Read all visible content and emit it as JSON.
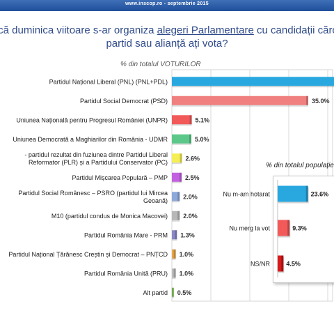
{
  "header": {
    "source_line": "www.inscop.ro - septembrie 2015"
  },
  "question": {
    "part1": "Dacă duminica viitoare s-ar organiza ",
    "underlined": "alegeri Parlamentare",
    "part2": " cu candidații căror",
    "line2": "partid sau alianță ați vota?"
  },
  "chart_data": [
    {
      "type": "bar",
      "orientation": "horizontal",
      "subtitle": "% din totalul VOTURILOR",
      "categories": [
        "Partidul Național Liberal (PNL) (PNL+PDL)",
        "Partidul Social Democrat (PSD)",
        "Uniunea Națională pentru Progresul României (UNPR)",
        "Uniunea Democrată a Maghiarilor din România - UDMR",
        "Partidul - partidul rezultat din fuziunea dintre Partidul Liberal Reformator (PLR) și a Partidului Conservator (PC)",
        "Partidul Mișcarea Populară – PMP",
        "Partidul Social Românesc – PSRO (partidul lui Mircea Geoană)",
        "M10 (partidul condus de Monica Macovei)",
        "Partidul România Mare - PRM",
        "Partidul Național Țărănesc Creștin și Democrat – PNȚCD",
        "Partidul România Unită (PRU)",
        "Alt partid"
      ],
      "category_lines": [
        [
          "Partidul Național Liberal (PNL) (PNL+PDL)"
        ],
        [
          "Partidul Social Democrat (PSD)"
        ],
        [
          "Uniunea Națională pentru Progresul României (UNPR)"
        ],
        [
          "Uniunea Democrată a Maghiarilor din România - UDMR"
        ],
        [
          "- partidul rezultat din fuziunea dintre Partidul Liberal",
          "Reformator (PLR) și a Partidului Conservator (PC)"
        ],
        [
          "Partidul Mișcarea Populară – PMP"
        ],
        [
          "Partidul Social Românesc – PSRO (partidul lui Mircea",
          "Geoană)"
        ],
        [
          "M10 (partidul condus de Monica Macovei)"
        ],
        [
          "Partidul România Mare - PRM"
        ],
        [
          "Partidul Național Țărănesc Creștin și Democrat – PNȚCD"
        ],
        [
          "Partidul România Unită (PRU)"
        ],
        [
          "Alt partid"
        ]
      ],
      "values": [
        46.0,
        35.0,
        5.1,
        5.0,
        2.6,
        2.5,
        2.0,
        2.0,
        1.3,
        1.0,
        1.0,
        0.5
      ],
      "value_labels": [
        "",
        "35.0%",
        "5.1%",
        "5.0%",
        "2.6%",
        "2.5%",
        "2.0%",
        "2.0%",
        "1.3%",
        "1.0%",
        "1.0%",
        "0.5%"
      ],
      "colors": [
        "#29a8e0",
        "#f08080",
        "#f25a5a",
        "#5bc88a",
        "#f5ee55",
        "#c262e0",
        "#8fa8dc",
        "#b8b8b8",
        "#8a8ac8",
        "#e8a84a",
        "#bdbdbd",
        "#8fd45e"
      ],
      "xlim": [
        0,
        50
      ],
      "grid": true
    },
    {
      "type": "bar",
      "orientation": "horizontal",
      "subtitle": "% din totalul populației",
      "categories": [
        "Nu m-am hotarat",
        "Nu merg la vot",
        "NS/NR"
      ],
      "values": [
        23.6,
        9.3,
        4.5
      ],
      "value_labels": [
        "23.6%",
        "9.3%",
        "4.5%"
      ],
      "colors": [
        "#29a8e0",
        "#f25a5a",
        "#d81a1a"
      ],
      "xlim": [
        0,
        30
      ]
    }
  ]
}
